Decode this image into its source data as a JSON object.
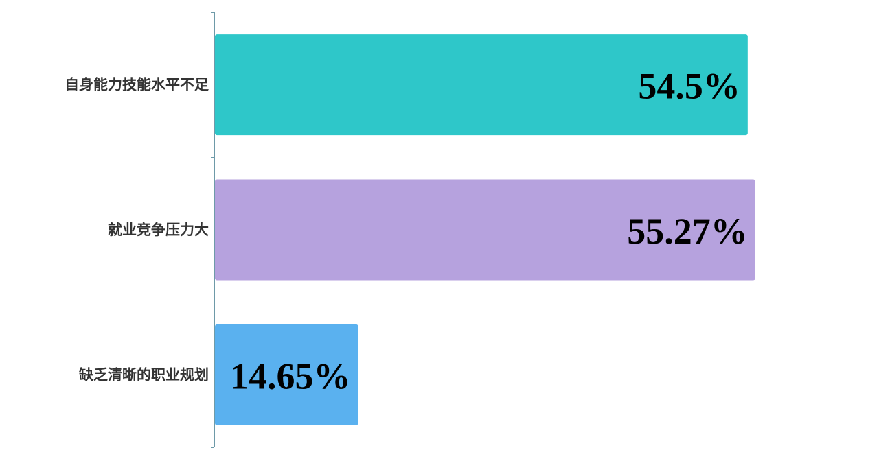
{
  "chart_data": {
    "type": "bar",
    "orientation": "horizontal",
    "categories": [
      "自身能力技能水平不足",
      "就业竞争压力大",
      "缺乏清晰的职业规划"
    ],
    "values": [
      54.5,
      55.27,
      14.65
    ],
    "labels": [
      "54.5%",
      "55.27%",
      "14.65%"
    ],
    "colors": [
      "#2ec7c9",
      "#b6a2de",
      "#5ab1ef"
    ],
    "axis_color": "#6e9aa8",
    "xlim": [
      0,
      68
    ],
    "grid": false,
    "x_axis_visible": false,
    "title": "",
    "xlabel": "",
    "ylabel": ""
  }
}
